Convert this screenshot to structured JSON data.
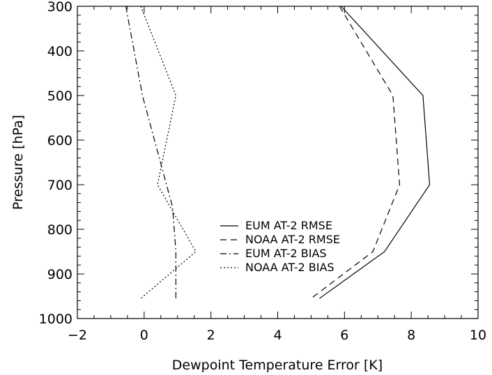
{
  "chart_data": {
    "type": "line",
    "xlabel": "Dewpoint Temperature Error [K]",
    "ylabel": "Pressure [hPa]",
    "xlim": [
      -2,
      10
    ],
    "ylim": [
      1000,
      300
    ],
    "xticks": [
      -2,
      0,
      2,
      4,
      6,
      8,
      10
    ],
    "yticks": [
      300,
      400,
      500,
      600,
      700,
      800,
      900,
      1000
    ],
    "legend_position": "center-right",
    "series": [
      {
        "name": "EUM AT-2 RMSE",
        "dash": "solid",
        "points": [
          [
            5.9,
            300
          ],
          [
            8.35,
            500
          ],
          [
            8.55,
            700
          ],
          [
            7.2,
            850
          ],
          [
            5.25,
            955
          ]
        ]
      },
      {
        "name": "NOAA AT-2 RMSE",
        "dash": "dashed",
        "points": [
          [
            5.85,
            300
          ],
          [
            7.45,
            500
          ],
          [
            7.65,
            700
          ],
          [
            6.85,
            850
          ],
          [
            5.0,
            955
          ]
        ]
      },
      {
        "name": "EUM AT-2 BIAS",
        "dash": "dashdot",
        "points": [
          [
            -0.55,
            300
          ],
          [
            -0.05,
            500
          ],
          [
            0.85,
            750
          ],
          [
            0.95,
            850
          ],
          [
            0.95,
            955
          ]
        ]
      },
      {
        "name": "NOAA AT-2 BIAS",
        "dash": "dotted",
        "points": [
          [
            -0.1,
            300
          ],
          [
            0.95,
            500
          ],
          [
            0.4,
            700
          ],
          [
            1.55,
            850
          ],
          [
            -0.1,
            955
          ]
        ]
      }
    ]
  }
}
